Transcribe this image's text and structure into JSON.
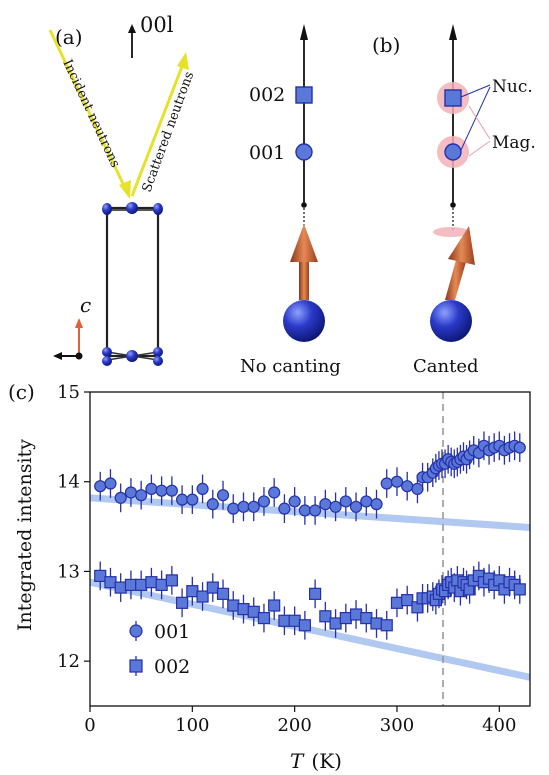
{
  "panel_a": {
    "label": "(a)",
    "axis_label": "00l",
    "incident_label": "Incident neutrons",
    "scattered_label": "Scattered neutrons",
    "c_axis_label": "c"
  },
  "panel_b": {
    "label": "(b)",
    "peak_002": "002",
    "peak_001": "001",
    "nuc_label": "Nuc.",
    "mag_label": "Mag.",
    "no_canting_label": "No canting",
    "canted_label": "Canted"
  },
  "colors": {
    "marker_fill": "#5a78d8",
    "marker_edge": "#2630a8",
    "fit_line": "#a9c3ef",
    "beam": "#e6e22a",
    "spin_arrow": "#c8643a",
    "atom": "#2232b8",
    "mag_halo": "#f2b0b8"
  },
  "chart_data": {
    "type": "scatter",
    "panel_label": "(c)",
    "xlabel_symbol": "T",
    "xlabel_unit": "(K)",
    "ylabel": "Integrated intensity",
    "xlim": [
      0,
      430
    ],
    "ylim": [
      11.5,
      15.0
    ],
    "x_ticks": [
      0,
      100,
      200,
      300,
      400
    ],
    "y_ticks": [
      12,
      13,
      14,
      15
    ],
    "vline_x": 345,
    "legend_position": "lower-left",
    "series": [
      {
        "name": "001",
        "marker": "circle",
        "x": [
          10,
          20,
          30,
          40,
          50,
          60,
          70,
          80,
          90,
          100,
          110,
          120,
          130,
          140,
          150,
          160,
          170,
          180,
          190,
          200,
          210,
          220,
          230,
          240,
          250,
          260,
          270,
          280,
          290,
          300,
          310,
          320,
          325,
          330,
          335,
          338,
          341,
          344,
          347,
          350,
          353,
          356,
          359,
          362,
          365,
          368,
          371,
          375,
          380,
          385,
          390,
          395,
          400,
          405,
          410,
          415,
          420
        ],
        "y": [
          13.95,
          13.98,
          13.82,
          13.88,
          13.85,
          13.92,
          13.9,
          13.9,
          13.8,
          13.8,
          13.92,
          13.75,
          13.85,
          13.7,
          13.72,
          13.72,
          13.78,
          13.88,
          13.7,
          13.78,
          13.68,
          13.68,
          13.75,
          13.72,
          13.78,
          13.72,
          13.78,
          13.75,
          13.98,
          14.0,
          13.95,
          13.92,
          14.05,
          14.05,
          14.1,
          14.15,
          14.18,
          14.2,
          14.2,
          14.25,
          14.22,
          14.2,
          14.22,
          14.25,
          14.28,
          14.25,
          14.3,
          14.35,
          14.32,
          14.4,
          14.35,
          14.38,
          14.4,
          14.35,
          14.38,
          14.4,
          14.38
        ],
        "err": 0.16
      },
      {
        "name": "002",
        "marker": "square",
        "x": [
          10,
          20,
          30,
          40,
          50,
          60,
          70,
          80,
          90,
          100,
          110,
          120,
          130,
          140,
          150,
          160,
          170,
          180,
          190,
          200,
          210,
          220,
          230,
          240,
          250,
          260,
          270,
          280,
          290,
          300,
          310,
          320,
          325,
          330,
          335,
          338,
          341,
          344,
          347,
          350,
          353,
          356,
          359,
          362,
          365,
          368,
          371,
          375,
          380,
          385,
          390,
          395,
          400,
          405,
          410,
          415,
          420
        ],
        "y": [
          12.95,
          12.88,
          12.82,
          12.85,
          12.85,
          12.88,
          12.85,
          12.9,
          12.65,
          12.78,
          12.72,
          12.82,
          12.75,
          12.62,
          12.58,
          12.55,
          12.48,
          12.62,
          12.45,
          12.45,
          12.4,
          12.75,
          12.5,
          12.42,
          12.48,
          12.52,
          12.48,
          12.42,
          12.4,
          12.65,
          12.68,
          12.6,
          12.7,
          12.7,
          12.72,
          12.68,
          12.75,
          12.8,
          12.78,
          12.85,
          12.88,
          12.82,
          12.9,
          12.78,
          12.88,
          12.85,
          12.8,
          12.9,
          12.95,
          12.88,
          12.92,
          12.85,
          12.9,
          12.8,
          12.88,
          12.85,
          12.8
        ],
        "err": 0.16
      }
    ],
    "fit_lines": [
      {
        "series": "001",
        "x": [
          0,
          430
        ],
        "y": [
          13.82,
          13.49
        ]
      },
      {
        "series": "002",
        "x": [
          0,
          430
        ],
        "y": [
          12.88,
          11.82
        ]
      }
    ]
  }
}
